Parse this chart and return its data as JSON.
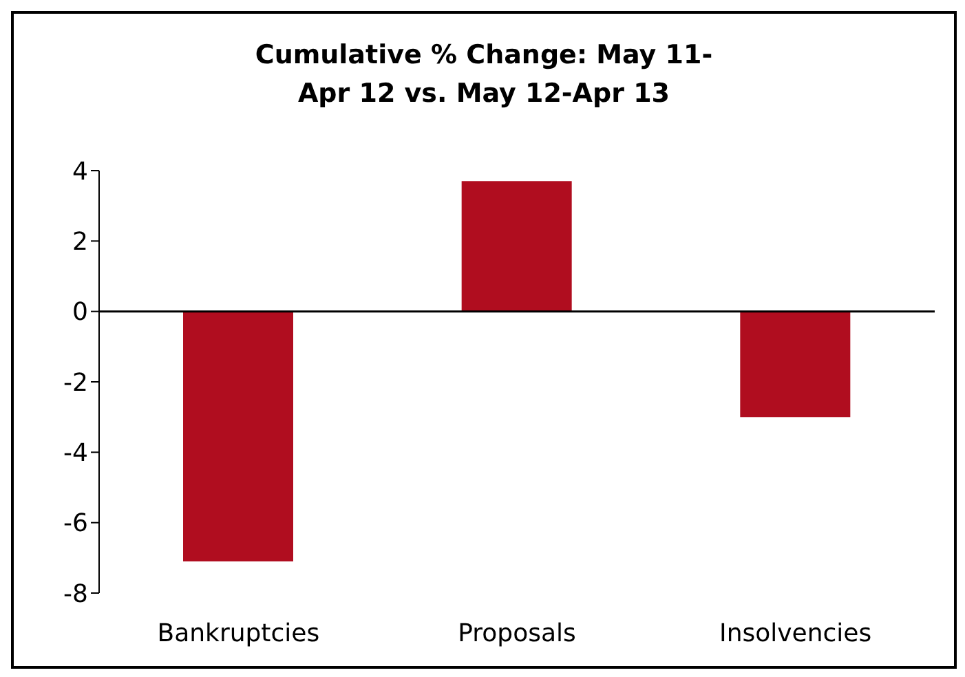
{
  "chart_data": {
    "type": "bar",
    "title": "Cumulative % Change: May 11-Apr 12 vs. May 12-Apr 13",
    "categories": [
      "Bankruptcies",
      "Proposals",
      "Insolvencies"
    ],
    "values": [
      -7.1,
      3.7,
      -3.0
    ],
    "color": "#b00d1f",
    "ylim": [
      -8,
      4
    ],
    "yticks": [
      -8,
      -6,
      -4,
      -2,
      0,
      2,
      4
    ]
  }
}
